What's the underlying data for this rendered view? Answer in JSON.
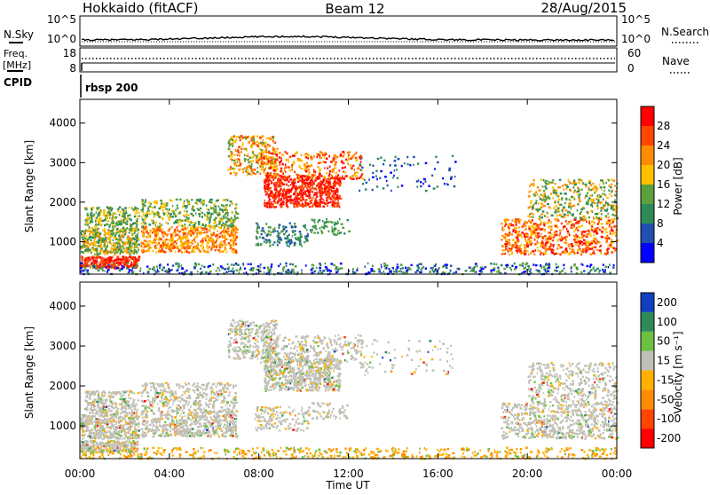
{
  "header": {
    "station": "Hokkaido (fitACF)",
    "beam": "Beam 12",
    "date": "28/Aug/2015"
  },
  "top_panels": {
    "nsky": {
      "label": "N.Sky",
      "ticks": [
        "10^5",
        "10^0"
      ],
      "right_label": "N.Search",
      "right_ticks": [
        "10^5",
        "10^0"
      ]
    },
    "freq": {
      "label_line1": "Freq.",
      "label_line2": "[MHz]",
      "ticks": [
        "18",
        "8"
      ],
      "right_label": "Nave",
      "right_ticks": [
        "60",
        "0"
      ]
    },
    "cpid": {
      "label": "CPID",
      "value": "rbsp 200"
    }
  },
  "colors": {
    "power": [
      "#0000ff",
      "#2050b0",
      "#2e8b57",
      "#5aa03c",
      "#ffc000",
      "#ff8c00",
      "#ff4500",
      "#ff0000"
    ],
    "velocity": [
      "#ff0000",
      "#ff4500",
      "#ff8c00",
      "#ffb000",
      "#c0c0b8",
      "#6cc040",
      "#2e8b57",
      "#1040c0"
    ]
  },
  "chart_data": [
    {
      "type": "heatmap",
      "name": "power",
      "ylabel": "Slant Range [km]",
      "ylim": [
        180,
        4600
      ],
      "yticks": [
        "1000",
        "2000",
        "3000",
        "4000"
      ],
      "xlim": [
        0,
        24
      ],
      "xticks": [
        "00:00",
        "04:00",
        "08:00",
        "12:00",
        "16:00",
        "20:00",
        "00:00"
      ],
      "colorbar": {
        "label": "Power [dB]",
        "range": [
          0,
          32
        ],
        "ticks": [
          "4",
          "8",
          "12",
          "16",
          "20",
          "24",
          "28"
        ]
      }
    },
    {
      "type": "heatmap",
      "name": "velocity",
      "ylabel": "Slant Range [km]",
      "ylim": [
        180,
        4600
      ],
      "yticks": [
        "1000",
        "2000",
        "3000",
        "4000"
      ],
      "xlim": [
        0,
        24
      ],
      "xticks": [
        "00:00",
        "04:00",
        "08:00",
        "12:00",
        "16:00",
        "20:00",
        "00:00"
      ],
      "xlabel": "Time UT",
      "colorbar": {
        "label": "Velocity [m s⁻¹]",
        "ticks": [
          "200",
          "100",
          "50",
          "15",
          "-15",
          "-50",
          "-100",
          "-200"
        ]
      }
    }
  ]
}
